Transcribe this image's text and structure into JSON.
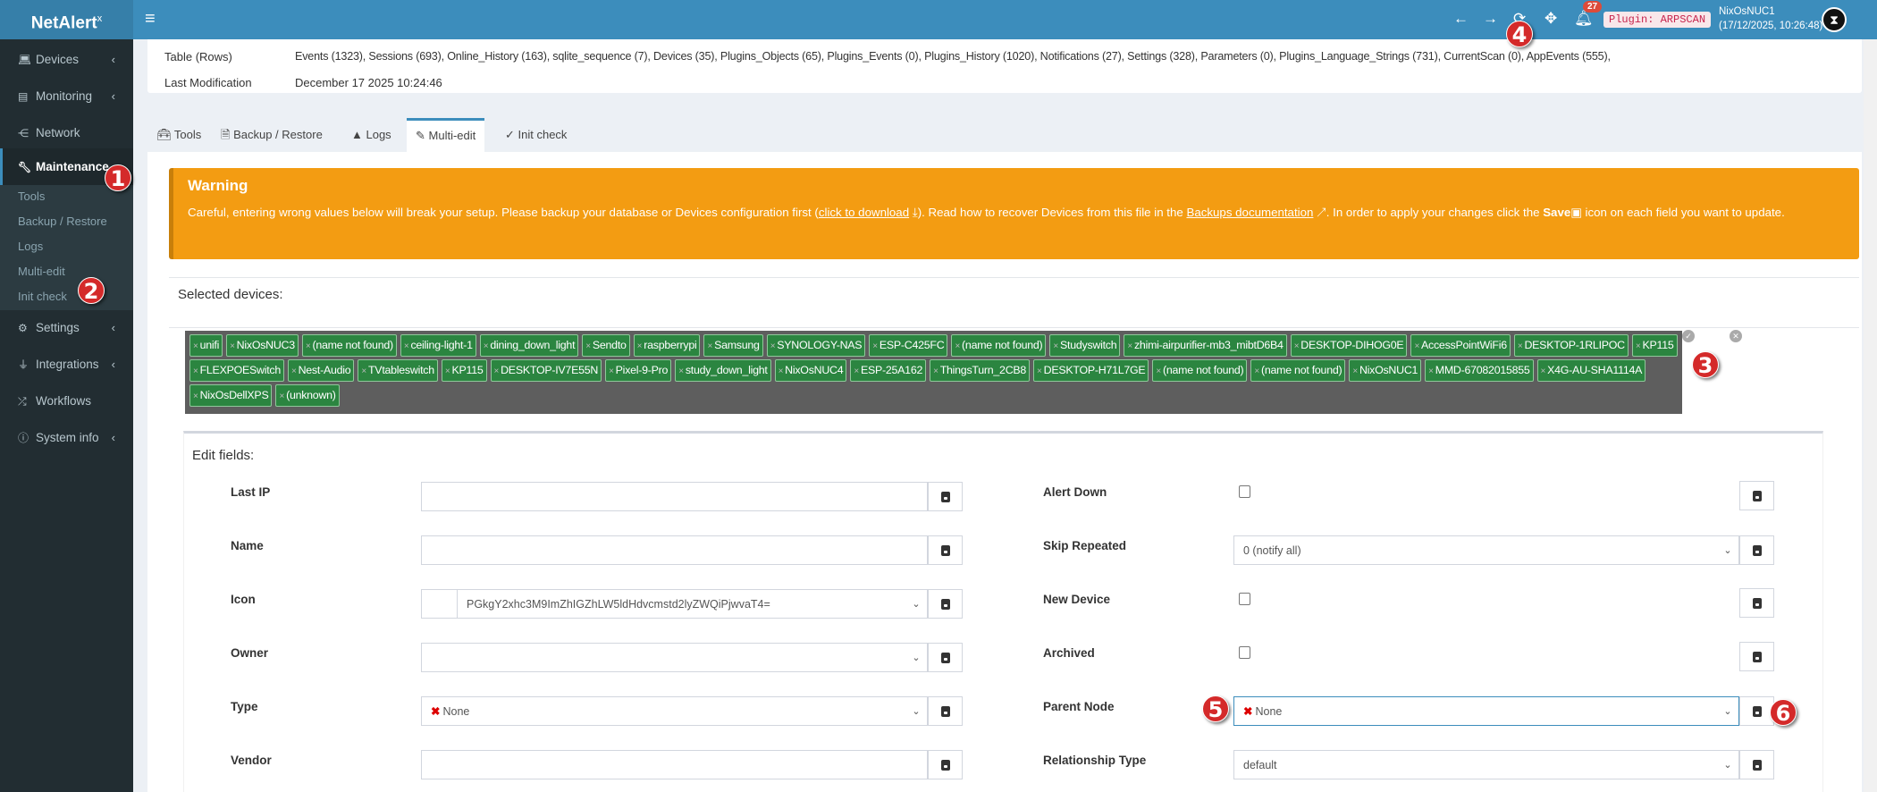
{
  "header": {
    "logo": "NetAlert",
    "logo_sup": "x",
    "notifications_count": "27",
    "plugin_badge": "Plugin: ARPSCAN",
    "user_name": "NixOsNUC1",
    "user_time": "(17/12/2025, 10:26:48)",
    "icons": [
      "bars-icon",
      "arrow-left-icon",
      "arrow-right-icon",
      "refresh-icon",
      "arrows-move-icon",
      "bell-icon"
    ]
  },
  "sidebar": {
    "items": [
      {
        "label": "Devices",
        "icon": "laptop-icon",
        "chevron": true
      },
      {
        "label": "Monitoring",
        "icon": "chart-icon",
        "chevron": true
      },
      {
        "label": "Network",
        "icon": "sitemap-icon",
        "chevron": false
      },
      {
        "label": "Maintenance",
        "icon": "wrench-icon",
        "chevron": false,
        "active": true
      },
      {
        "label": "Settings",
        "icon": "gear-icon",
        "chevron": true
      },
      {
        "label": "Integrations",
        "icon": "plug-icon",
        "chevron": true
      },
      {
        "label": "Workflows",
        "icon": "shuffle-icon",
        "chevron": false
      },
      {
        "label": "System info",
        "icon": "info-icon",
        "chevron": true
      }
    ],
    "submenu": [
      "Tools",
      "Backup / Restore",
      "Logs",
      "Multi-edit",
      "Init check"
    ]
  },
  "annotations": [
    "1",
    "2",
    "3",
    "4",
    "5",
    "6"
  ],
  "info": {
    "table_label": "Table (Rows)",
    "table_value": "Events (1323), Sessions (693), Online_History (163), sqlite_sequence (7), Devices (35), Plugins_Objects (65), Plugins_Events (0), Plugins_History (1020), Notifications (27), Settings (328), Parameters (0), Plugins_Language_Strings (731), CurrentScan (0), AppEvents (555),",
    "modified_label": "Last Modification",
    "modified_value": "December 17 2025 10:24:46"
  },
  "tabs": [
    {
      "label": "Tools",
      "icon": "toolbox-icon"
    },
    {
      "label": "Backup / Restore",
      "icon": "file-shield-icon"
    },
    {
      "label": "Logs",
      "icon": "warning-icon"
    },
    {
      "label": "Multi-edit",
      "icon": "pencil-icon",
      "active": true
    },
    {
      "label": "Init check",
      "icon": "check-icon"
    }
  ],
  "warning": {
    "title": "Warning",
    "text1": "Careful, entering wrong values below will break your setup. Please backup your database or Devices configuration first (",
    "link1": "click to download",
    "text2": "). Read how to recover Devices from this file in the ",
    "link2": "Backups documentation",
    "text3": ". In order to apply your changes click the ",
    "save_word": "Save",
    "text4": " icon on each field you want to update."
  },
  "selected": {
    "label": "Selected devices:",
    "tags": [
      "unifi",
      "NixOsNUC3",
      "(name not found)",
      "ceiling-light-1",
      "dining_down_light",
      "Sendto",
      "raspberrypi",
      "Samsung",
      "SYNOLOGY-NAS",
      "ESP-C425FC",
      "(name not found)",
      "Studyswitch",
      "zhimi-airpurifier-mb3_mibtD6B4",
      "DESKTOP-DIHOG0E",
      "AccessPointWiFi6",
      "DESKTOP-1RLIPOC",
      "KP115",
      "FLEXPOESwitch",
      "Nest-Audio",
      "TVtableswitch",
      "KP115",
      "DESKTOP-IV7E55N",
      "Pixel-9-Pro",
      "study_down_light",
      "NixOsNUC4",
      "ESP-25A162",
      "ThingsTurn_2CB8",
      "DESKTOP-H71L7GE",
      "(name not found)",
      "(name not found)",
      "NixOsNUC1",
      "MMD-67082015855",
      "X4G-AU-SHA1114A",
      "NixOsDellXPS",
      "(unknown)"
    ]
  },
  "edit": {
    "title": "Edit fields:",
    "left": [
      {
        "label": "Last IP",
        "type": "text",
        "value": ""
      },
      {
        "label": "Name",
        "type": "text",
        "value": ""
      },
      {
        "label": "Icon",
        "type": "icon-select",
        "value": "PGkgY2xhc3M9ImZhIGZhLW5ldHdvcmstd2lyZWQiPjwvaT4="
      },
      {
        "label": "Owner",
        "type": "select",
        "value": ""
      },
      {
        "label": "Type",
        "type": "select",
        "value": "None",
        "x": true
      },
      {
        "label": "Vendor",
        "type": "text",
        "value": ""
      }
    ],
    "right": [
      {
        "label": "Alert Down",
        "type": "checkbox",
        "checked": false
      },
      {
        "label": "Skip Repeated",
        "type": "select",
        "value": "0 (notify all)"
      },
      {
        "label": "New Device",
        "type": "checkbox",
        "checked": false
      },
      {
        "label": "Archived",
        "type": "checkbox",
        "checked": false
      },
      {
        "label": "Parent Node",
        "type": "select",
        "value": "None",
        "x": true,
        "focus": true
      },
      {
        "label": "Relationship Type",
        "type": "select",
        "value": "default"
      }
    ]
  },
  "colors": {
    "header": "#3c8dbc",
    "sidebar": "#222d32",
    "warning": "#f39c12",
    "tag": "#2b8540",
    "annotation": "#d42a2a"
  }
}
